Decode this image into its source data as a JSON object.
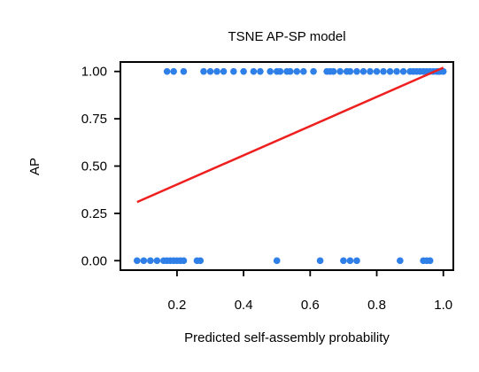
{
  "chart_data": {
    "type": "scatter",
    "title": "TSNE AP-SP model",
    "xlabel": "Predicted self-assembly probability",
    "ylabel": "AP",
    "xlim": [
      0.03,
      1.03
    ],
    "ylim": [
      -0.05,
      1.05
    ],
    "xticks": [
      0.2,
      0.4,
      0.6,
      0.8,
      1.0
    ],
    "xtick_labels": [
      "0.2",
      "0.4",
      "0.6",
      "0.8",
      "1.0"
    ],
    "yticks": [
      0.0,
      0.25,
      0.5,
      0.75,
      1.0
    ],
    "ytick_labels": [
      "0.00",
      "0.25",
      "0.50",
      "0.75",
      "1.00"
    ],
    "grid": false,
    "legend": "none",
    "series": [
      {
        "kind": "points",
        "color": "#2f7fe8",
        "x": [
          0.17,
          0.19,
          0.22,
          0.28,
          0.3,
          0.32,
          0.34,
          0.37,
          0.4,
          0.43,
          0.45,
          0.48,
          0.5,
          0.51,
          0.53,
          0.54,
          0.56,
          0.58,
          0.61,
          0.65,
          0.66,
          0.67,
          0.69,
          0.71,
          0.72,
          0.74,
          0.76,
          0.78,
          0.8,
          0.82,
          0.84,
          0.86,
          0.88,
          0.9,
          0.91,
          0.92,
          0.93,
          0.94,
          0.95,
          0.96,
          0.97,
          0.98,
          0.985,
          0.99,
          1.0,
          0.08,
          0.1,
          0.12,
          0.14,
          0.16,
          0.17,
          0.18,
          0.19,
          0.2,
          0.21,
          0.22,
          0.26,
          0.27,
          0.5,
          0.63,
          0.7,
          0.72,
          0.74,
          0.87,
          0.94,
          0.95,
          0.96
        ],
        "y": [
          1,
          1,
          1,
          1,
          1,
          1,
          1,
          1,
          1,
          1,
          1,
          1,
          1,
          1,
          1,
          1,
          1,
          1,
          1,
          1,
          1,
          1,
          1,
          1,
          1,
          1,
          1,
          1,
          1,
          1,
          1,
          1,
          1,
          1,
          1,
          1,
          1,
          1,
          1,
          1,
          1,
          1,
          1,
          1,
          1,
          0,
          0,
          0,
          0,
          0,
          0,
          0,
          0,
          0,
          0,
          0,
          0,
          0,
          0,
          0,
          0,
          0,
          0,
          0,
          0,
          0,
          0
        ]
      },
      {
        "kind": "fit_line",
        "color": "#ee1f1f",
        "x": [
          0.08,
          1.0
        ],
        "y": [
          0.31,
          1.02
        ]
      }
    ]
  }
}
